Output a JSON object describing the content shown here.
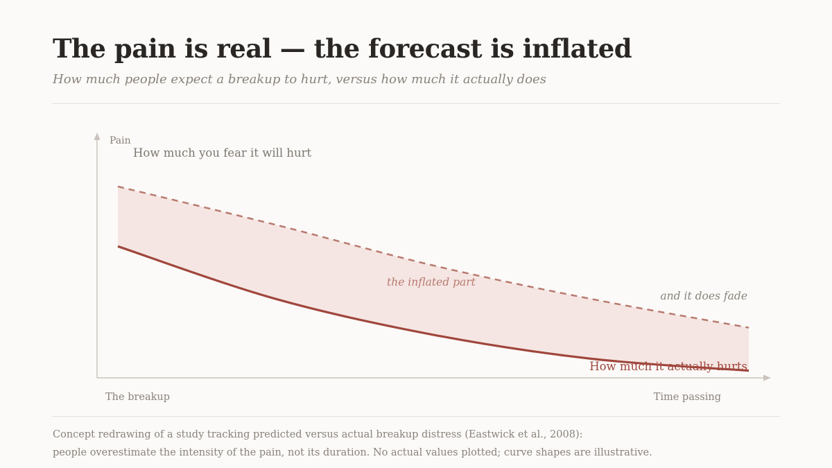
{
  "header": {
    "title": "The pain is real — the forecast is inflated",
    "subtitle": "How much people expect a breakup to hurt, versus how much it actually does"
  },
  "chart_data": {
    "type": "line",
    "ylabel": "Pain",
    "x_start_label": "The breakup",
    "x_end_label": "Time passing",
    "series": [
      {
        "name": "How much you fear it will hurt",
        "style": "dashed",
        "color": "#b87a70",
        "values": [
          0.8,
          0.64,
          0.47,
          0.33,
          0.21
        ]
      },
      {
        "name": "How much it actually hurts",
        "style": "solid",
        "color": "#a0463c",
        "values": [
          0.55,
          0.33,
          0.18,
          0.08,
          0.03
        ]
      }
    ],
    "x": [
      0,
      0.25,
      0.5,
      0.75,
      1
    ],
    "band_fill": "#f5e6e3",
    "annotations": {
      "gap": "the inflated part",
      "fade": "and it does fade"
    }
  },
  "caption": {
    "line1": "Concept redrawing of a study tracking predicted versus actual breakup distress (Eastwick et al., 2008):",
    "line2": "people overestimate the intensity of the pain, not its duration. No actual values plotted; curve shapes are illustrative."
  }
}
